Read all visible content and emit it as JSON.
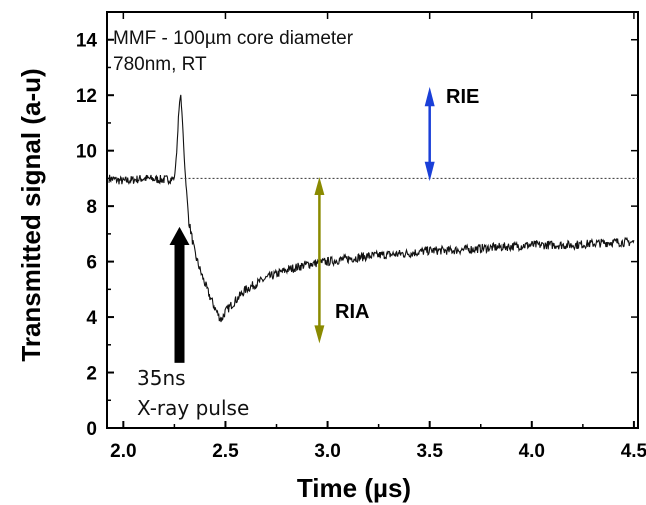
{
  "chart_data": {
    "type": "line",
    "xlabel": "Time (µs)",
    "ylabel": "Transmitted signal (a-u)",
    "xlim": [
      1.92,
      4.52
    ],
    "ylim": [
      0,
      15
    ],
    "x_ticks": [
      "2.0",
      "2.5",
      "3.0",
      "3.5",
      "4.0",
      "4.5"
    ],
    "y_ticks": [
      "0",
      "2",
      "4",
      "6",
      "8",
      "10",
      "12",
      "14"
    ],
    "grid": false,
    "reference_level": 9.0,
    "series": [
      {
        "color": "#111111",
        "x": [
          1.93,
          2.0,
          2.1,
          2.2,
          2.25,
          2.26,
          2.27,
          2.28,
          2.29,
          2.3,
          2.32,
          2.35,
          2.38,
          2.4,
          2.42,
          2.45,
          2.47,
          2.48,
          2.5,
          2.55,
          2.6,
          2.7,
          2.8,
          2.9,
          3.0,
          3.2,
          3.4,
          3.5,
          3.6,
          3.8,
          4.0,
          4.2,
          4.4,
          4.5
        ],
        "y": [
          9.0,
          8.9,
          9.0,
          8.95,
          9.0,
          9.8,
          11.2,
          12.1,
          11.0,
          9.5,
          7.5,
          6.3,
          5.6,
          5.2,
          4.8,
          4.3,
          4.0,
          3.9,
          4.2,
          4.6,
          5.0,
          5.4,
          5.7,
          5.9,
          6.0,
          6.2,
          6.3,
          6.4,
          6.4,
          6.5,
          6.6,
          6.6,
          6.7,
          6.7
        ]
      }
    ],
    "annotations": {
      "title_line1": "MMF - 100µm core diameter",
      "title_line2": "780nm, RT",
      "rie_label": "RIE",
      "ria_label": "RIA",
      "pulse_line1": "35ns",
      "pulse_line2": "X-ray pulse"
    },
    "colors": {
      "rie": "#1a3fd8",
      "ria": "#8a8a00",
      "pulse_arrow": "#000000",
      "trace": "#111111"
    }
  }
}
